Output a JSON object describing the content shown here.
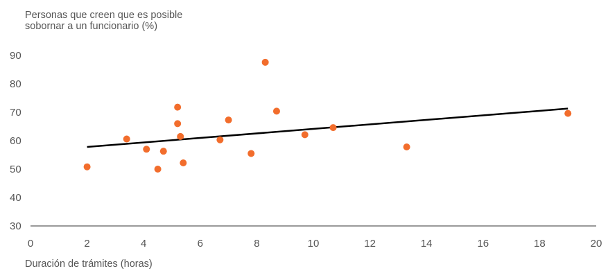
{
  "colors": {
    "points": "#f26d2c",
    "trendline": "#000000",
    "axis": "#333333",
    "text": "#555555"
  },
  "chart_data": {
    "type": "scatter",
    "title": "",
    "ylabel": [
      "Personas que creen que es posible",
      "sobornar a un funcionario (%)"
    ],
    "xlabel": "Duración de trámites (horas)",
    "xlim": [
      0,
      20
    ],
    "ylim": [
      30,
      90
    ],
    "xticks": [
      0,
      2,
      4,
      6,
      8,
      10,
      12,
      14,
      16,
      18,
      20
    ],
    "yticks": [
      30,
      40,
      50,
      60,
      70,
      80,
      90
    ],
    "grid": false,
    "points": [
      {
        "x": 2.0,
        "y": 50.8
      },
      {
        "x": 3.4,
        "y": 60.6
      },
      {
        "x": 4.1,
        "y": 57.0
      },
      {
        "x": 4.5,
        "y": 50.0
      },
      {
        "x": 4.7,
        "y": 56.3
      },
      {
        "x": 5.2,
        "y": 71.8
      },
      {
        "x": 5.2,
        "y": 66.0
      },
      {
        "x": 5.3,
        "y": 61.5
      },
      {
        "x": 5.4,
        "y": 52.2
      },
      {
        "x": 6.7,
        "y": 60.3
      },
      {
        "x": 7.0,
        "y": 67.3
      },
      {
        "x": 7.8,
        "y": 55.5
      },
      {
        "x": 8.3,
        "y": 87.6
      },
      {
        "x": 8.7,
        "y": 70.4
      },
      {
        "x": 9.7,
        "y": 62.1
      },
      {
        "x": 10.7,
        "y": 64.6
      },
      {
        "x": 13.3,
        "y": 57.8
      },
      {
        "x": 19.0,
        "y": 69.6
      }
    ],
    "trendline": {
      "x": [
        2.0,
        19.0
      ],
      "y": [
        57.8,
        71.3
      ]
    }
  }
}
